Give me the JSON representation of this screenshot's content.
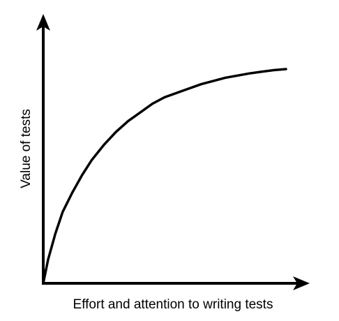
{
  "chart_data": {
    "type": "line",
    "xlabel": "Effort and attention to writing tests",
    "ylabel": "Value of tests",
    "xlim": [
      0,
      1
    ],
    "ylim": [
      0,
      1
    ],
    "grid": false,
    "legend": false,
    "ticks": false,
    "series": [
      {
        "x": [
          0,
          0.02,
          0.05,
          0.08,
          0.12,
          0.16,
          0.2,
          0.25,
          0.3,
          0.35,
          0.4,
          0.45,
          0.5,
          0.55,
          0.6,
          0.65,
          0.7,
          0.75,
          0.8,
          0.85,
          0.9,
          0.95,
          1.0
        ],
        "y": [
          0,
          0.11,
          0.23,
          0.33,
          0.42,
          0.5,
          0.57,
          0.64,
          0.7,
          0.75,
          0.79,
          0.83,
          0.86,
          0.88,
          0.9,
          0.92,
          0.935,
          0.95,
          0.96,
          0.97,
          0.978,
          0.985,
          0.99
        ]
      }
    ],
    "colors": {
      "line": "#000000",
      "axis": "#000000",
      "text": "#000000"
    }
  }
}
